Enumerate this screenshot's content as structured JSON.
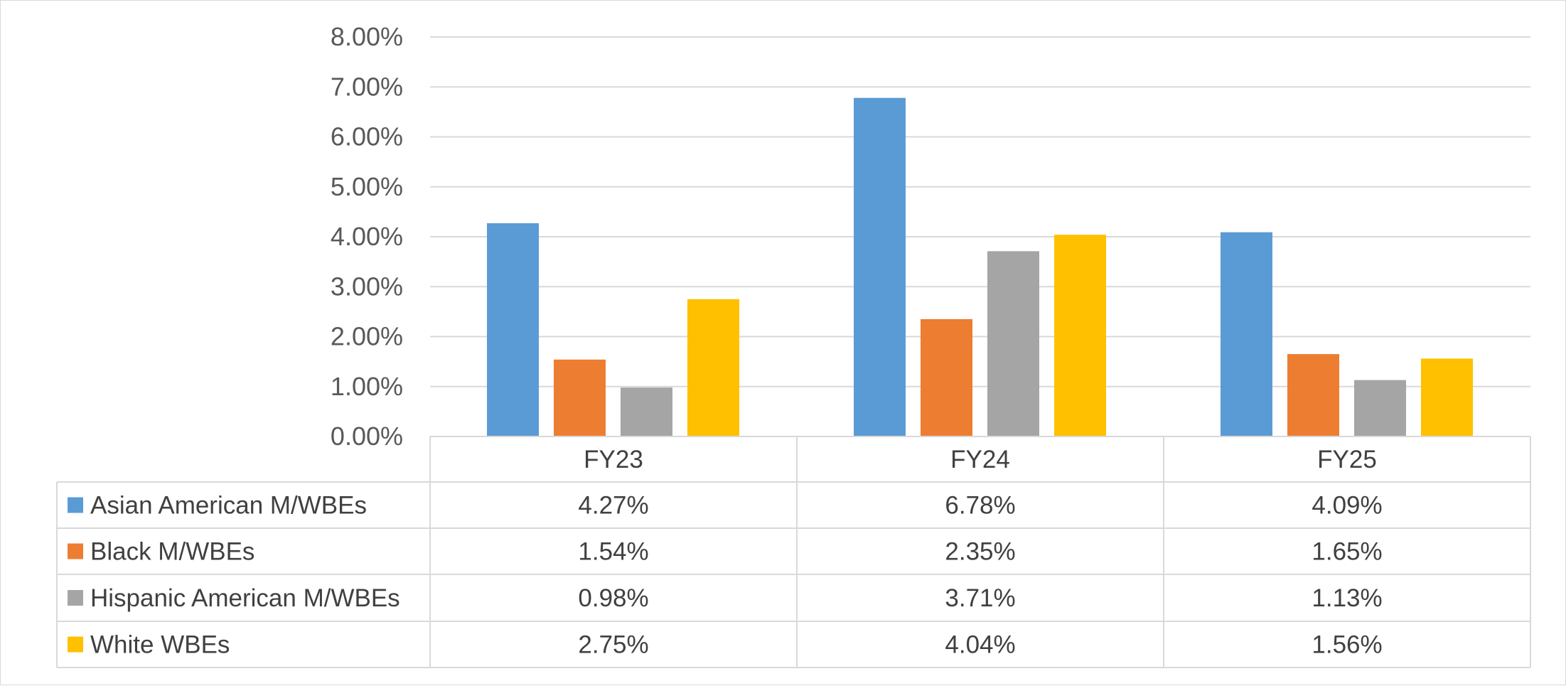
{
  "chart_data": {
    "type": "bar",
    "categories": [
      "FY23",
      "FY24",
      "FY25"
    ],
    "series": [
      {
        "name": "Asian American M/WBEs",
        "values": [
          4.27,
          6.78,
          4.09
        ],
        "labels": [
          "4.27%",
          "6.78%",
          "4.09%"
        ],
        "color": "#5b9bd5"
      },
      {
        "name": "Black M/WBEs",
        "values": [
          1.54,
          2.35,
          1.65
        ],
        "labels": [
          "1.54%",
          "2.35%",
          "1.65%"
        ],
        "color": "#ed7d31"
      },
      {
        "name": "Hispanic American M/WBEs",
        "values": [
          0.98,
          3.71,
          1.13
        ],
        "labels": [
          "0.98%",
          "3.71%",
          "1.13%"
        ],
        "color": "#a5a5a5"
      },
      {
        "name": "White WBEs",
        "values": [
          2.75,
          4.04,
          1.56
        ],
        "labels": [
          "2.75%",
          "4.04%",
          "1.56%"
        ],
        "color": "#ffc000"
      }
    ],
    "ylim": [
      0,
      8
    ],
    "yticks": [
      0,
      1,
      2,
      3,
      4,
      5,
      6,
      7,
      8
    ],
    "ytick_labels": [
      "0.00%",
      "1.00%",
      "2.00%",
      "3.00%",
      "4.00%",
      "5.00%",
      "6.00%",
      "7.00%",
      "8.00%"
    ],
    "grid": true,
    "legend": "data-table",
    "title": "",
    "xlabel": "",
    "ylabel": ""
  },
  "colors": {
    "gridline": "#d9d9d9",
    "table_border": "#d9d9d9",
    "text": "#404040",
    "axis_text": "#595959"
  }
}
